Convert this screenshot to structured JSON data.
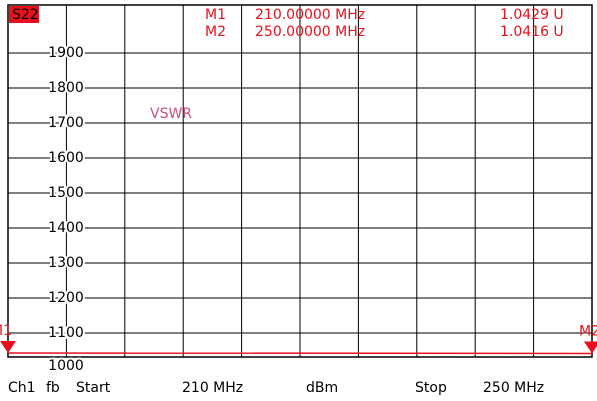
{
  "chart_data": {
    "type": "line",
    "parameter": "S22",
    "format": "VSWR",
    "x": [
      210,
      250
    ],
    "series": [
      {
        "name": "S22",
        "color": "#e8101c",
        "values": [
          1.0429,
          1.0416
        ]
      }
    ],
    "markers": [
      {
        "name": "M1",
        "x": 210,
        "x_label": "210.00000 MHz",
        "value": 1.0429,
        "value_label": "1.0429 U"
      },
      {
        "name": "M2",
        "x": 250,
        "x_label": "250.00000 MHz",
        "value": 1.0416,
        "value_label": "1.0416 U"
      }
    ],
    "xlim": [
      210,
      250
    ],
    "ylim": [
      1.0,
      2.0
    ],
    "yticks": [
      {
        "value": 1.9,
        "label": "1900"
      },
      {
        "value": 1.8,
        "label": "1800"
      },
      {
        "value": 1.7,
        "label": "1700"
      },
      {
        "value": 1.6,
        "label": "1600"
      },
      {
        "value": 1.5,
        "label": "1500"
      },
      {
        "value": 1.4,
        "label": "1400"
      },
      {
        "value": 1.3,
        "label": "1300"
      },
      {
        "value": 1.2,
        "label": "1200"
      },
      {
        "value": 1.1,
        "label": "1100"
      },
      {
        "value": 1.0,
        "label": "1000"
      }
    ],
    "footer": {
      "channel": "Ch1",
      "mode": "fb",
      "start_text": "Start",
      "start_label": "210 MHz",
      "unit": "dBm",
      "stop_text": "Stop",
      "stop_label": "250 MHz"
    }
  }
}
